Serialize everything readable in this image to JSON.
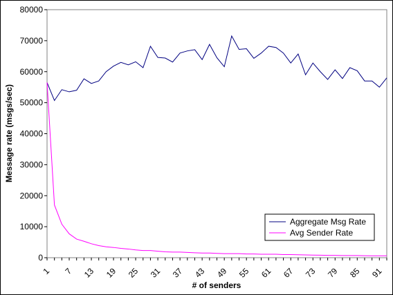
{
  "chart_data": {
    "type": "line",
    "xlabel": "# of senders",
    "ylabel": "Message rate (msgs/sec)",
    "x": [
      1,
      3,
      5,
      7,
      9,
      11,
      13,
      15,
      17,
      19,
      21,
      23,
      25,
      27,
      29,
      31,
      33,
      35,
      37,
      39,
      41,
      43,
      45,
      47,
      49,
      51,
      53,
      55,
      57,
      59,
      61,
      63,
      65,
      67,
      69,
      71,
      73,
      75,
      77,
      79,
      81,
      83,
      85,
      87,
      89,
      91,
      93
    ],
    "x_tick_labels": [
      "1",
      "7",
      "13",
      "19",
      "25",
      "31",
      "37",
      "43",
      "49",
      "55",
      "61",
      "67",
      "73",
      "79",
      "85",
      "91"
    ],
    "xlim": [
      1,
      93
    ],
    "ylim": [
      0,
      80000
    ],
    "y_ticks": [
      0,
      10000,
      20000,
      30000,
      40000,
      50000,
      60000,
      70000,
      80000
    ],
    "grid": false,
    "legend_position": "bottom-right",
    "series": [
      {
        "name": "Aggregate Msg Rate",
        "color": "#000080",
        "values": [
          56500,
          50700,
          54200,
          53500,
          54000,
          57700,
          56200,
          57000,
          60000,
          61800,
          63000,
          62200,
          63200,
          61300,
          68200,
          64600,
          64400,
          63100,
          66000,
          66700,
          67100,
          63900,
          68800,
          64500,
          61600,
          71500,
          67200,
          67400,
          64300,
          66000,
          68200,
          67800,
          66000,
          62800,
          65700,
          59000,
          62800,
          60000,
          57500,
          60600,
          57800,
          61300,
          60300,
          57000,
          57000,
          55000,
          58000
        ]
      },
      {
        "name": "Avg Sender Rate",
        "color": "#ff00ff",
        "values": [
          56500,
          17000,
          10800,
          7700,
          6000,
          5300,
          4500,
          3900,
          3500,
          3300,
          3000,
          2800,
          2500,
          2300,
          2300,
          2100,
          1900,
          1800,
          1800,
          1700,
          1600,
          1500,
          1500,
          1400,
          1300,
          1300,
          1300,
          1200,
          1200,
          1100,
          1100,
          1100,
          1000,
          1000,
          950,
          900,
          850,
          800,
          750,
          750,
          700,
          700,
          700,
          650,
          620,
          600,
          620
        ]
      }
    ]
  }
}
